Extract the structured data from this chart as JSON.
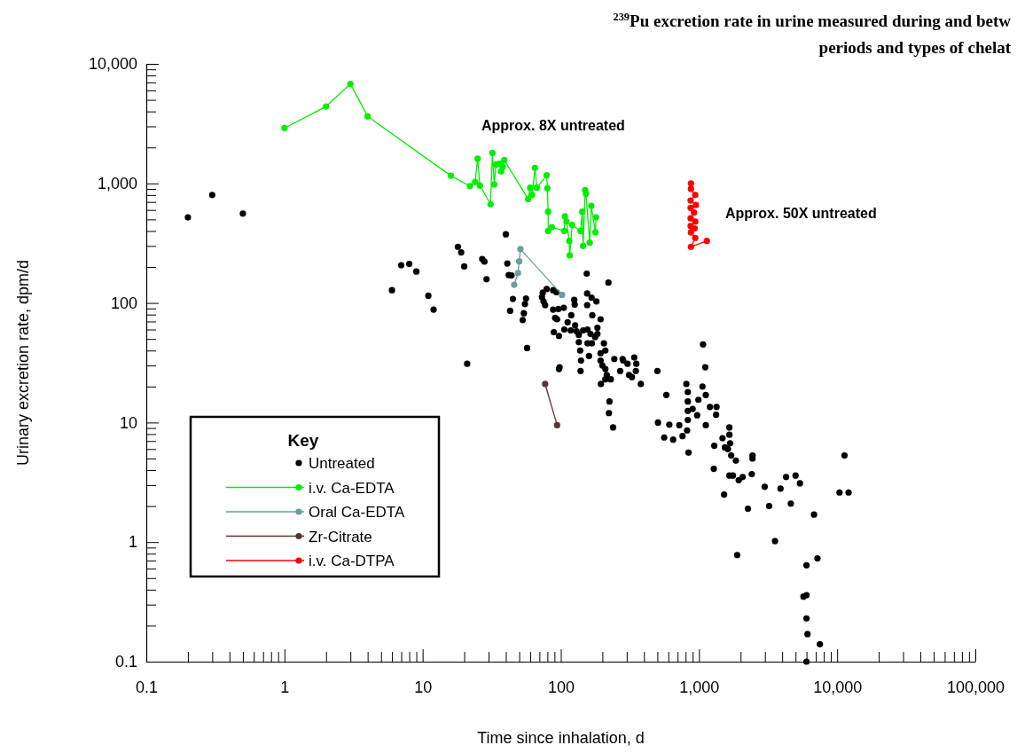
{
  "chart_data": {
    "type": "scatter",
    "title": "$^{239}$Pu excretion rate in urine measured during and betw",
    "subtitle": "periods and types of chelat",
    "xlabel": "Time since inhalation, d",
    "ylabel": "Urinary excretion rate, dpm/d",
    "legend_title": "Key",
    "legend": "bottom left",
    "log": "xy",
    "grid": false,
    "marker": "circle",
    "xlim": [
      0.1,
      100000
    ],
    "ylim": [
      0.1,
      10000
    ],
    "xticks": [
      0.1,
      {
        "value": 0.2,
        "label": null
      },
      {
        "value": 0.3,
        "label": null
      },
      {
        "value": 0.4,
        "label": null
      },
      {
        "value": 0.5,
        "label": null
      },
      {
        "value": 0.6,
        "label": null
      },
      {
        "value": 0.7,
        "label": null
      },
      {
        "value": 0.8,
        "label": null
      },
      {
        "value": 0.9,
        "label": null
      },
      1,
      {
        "value": 2,
        "label": null
      },
      {
        "value": 3,
        "label": null
      },
      {
        "value": 4,
        "label": null
      },
      {
        "value": 5,
        "label": null
      },
      {
        "value": 6,
        "label": null
      },
      {
        "value": 7,
        "label": null
      },
      {
        "value": 8,
        "label": null
      },
      {
        "value": 9,
        "label": null
      },
      10,
      {
        "value": 20,
        "label": null
      },
      {
        "value": 30,
        "label": null
      },
      {
        "value": 40,
        "label": null
      },
      {
        "value": 50,
        "label": null
      },
      {
        "value": 60,
        "label": null
      },
      {
        "value": 70,
        "label": null
      },
      {
        "value": 80,
        "label": null
      },
      {
        "value": 90,
        "label": null
      },
      100,
      {
        "value": 200,
        "label": null
      },
      {
        "value": 300,
        "label": null
      },
      {
        "value": 400,
        "label": null
      },
      {
        "value": 500,
        "label": null
      },
      {
        "value": 600,
        "label": null
      },
      {
        "value": 700,
        "label": null
      },
      {
        "value": 800,
        "label": null
      },
      {
        "value": 900,
        "label": null
      },
      {
        "value": 1000,
        "label": "1,000"
      },
      {
        "value": 2000,
        "label": null
      },
      {
        "value": 3000,
        "label": null
      },
      {
        "value": 4000,
        "label": null
      },
      {
        "value": 5000,
        "label": null
      },
      {
        "value": 6000,
        "label": null
      },
      {
        "value": 7000,
        "label": null
      },
      {
        "value": 8000,
        "label": null
      },
      {
        "value": 9000,
        "label": null
      },
      {
        "value": 10000,
        "label": "10,000"
      },
      {
        "value": 20000,
        "label": null
      },
      {
        "value": 30000,
        "label": null
      },
      {
        "value": 40000,
        "label": null
      },
      {
        "value": 50000,
        "label": null
      },
      {
        "value": 60000,
        "label": null
      },
      {
        "value": 70000,
        "label": null
      },
      {
        "value": 80000,
        "label": null
      },
      {
        "value": 90000,
        "label": null
      },
      {
        "value": 100000,
        "label": "100,000"
      }
    ],
    "yticks": [
      0.1,
      {
        "value": 0.2,
        "label": null
      },
      {
        "value": 0.3,
        "label": null
      },
      {
        "value": 0.4,
        "label": null
      },
      {
        "value": 0.5,
        "label": null
      },
      {
        "value": 0.6,
        "label": null
      },
      {
        "value": 0.7,
        "label": null
      },
      {
        "value": 0.8,
        "label": null
      },
      {
        "value": 0.9,
        "label": null
      },
      1,
      {
        "value": 2,
        "label": null
      },
      {
        "value": 3,
        "label": null
      },
      {
        "value": 4,
        "label": null
      },
      {
        "value": 5,
        "label": null
      },
      {
        "value": 6,
        "label": null
      },
      {
        "value": 7,
        "label": null
      },
      {
        "value": 8,
        "label": null
      },
      {
        "value": 9,
        "label": null
      },
      10,
      {
        "value": 20,
        "label": null
      },
      {
        "value": 30,
        "label": null
      },
      {
        "value": 40,
        "label": null
      },
      {
        "value": 50,
        "label": null
      },
      {
        "value": 60,
        "label": null
      },
      {
        "value": 70,
        "label": null
      },
      {
        "value": 80,
        "label": null
      },
      {
        "value": 90,
        "label": null
      },
      100,
      {
        "value": 200,
        "label": null
      },
      {
        "value": 300,
        "label": null
      },
      {
        "value": 400,
        "label": null
      },
      {
        "value": 500,
        "label": null
      },
      {
        "value": 600,
        "label": null
      },
      {
        "value": 700,
        "label": null
      },
      {
        "value": 800,
        "label": null
      },
      {
        "value": 900,
        "label": null
      },
      {
        "value": 1000,
        "label": "1,000"
      },
      {
        "value": 2000,
        "label": null
      },
      {
        "value": 3000,
        "label": null
      },
      {
        "value": 4000,
        "label": null
      },
      {
        "value": 5000,
        "label": null
      },
      {
        "value": 6000,
        "label": null
      },
      {
        "value": 7000,
        "label": null
      },
      {
        "value": 8000,
        "label": null
      },
      {
        "value": 9000,
        "label": null
      },
      {
        "value": 10000,
        "label": "10,000"
      }
    ],
    "annotations": [
      "Approx. 8X untreated",
      "Approx. 50X untreated"
    ],
    "series": [
      {
        "name": "Untreated",
        "color": "#000000",
        "x": [
          0.2,
          0.3,
          0.5,
          6,
          7,
          8,
          9,
          11,
          12,
          18,
          19,
          20,
          21,
          27,
          28,
          29,
          40,
          41,
          42,
          44,
          45,
          43,
          54,
          53,
          56,
          55,
          57,
          154,
          221,
          74,
          79,
          73,
          75,
          77,
          88,
          93,
          88,
          96,
          105,
          91,
          94,
          89,
          97,
          106,
          112,
          119,
          125,
          126,
          118,
          127,
          130,
          135,
          135,
          138,
          140,
          139,
          155,
          167,
          181,
          155,
          169,
          194,
          145,
          156,
          164,
          184,
          184,
          156,
          168,
          177,
          205,
          210,
          194,
          160,
          194,
          200,
          210,
          215,
          210,
          230,
          195,
          244,
          280,
          304,
          269,
          312,
          327,
          340,
          352,
          349,
          379,
          98,
          97,
          225,
          223,
          239,
          500,
          505,
          580,
          610,
          720,
          810,
          830,
          830,
          830,
          830,
          820,
          900,
          970,
          990,
          1070,
          1110,
          1060,
          760,
          560,
          650,
          1120,
          840,
          1120,
          1200,
          1340,
          1330,
          1290,
          1280,
          1520,
          1480,
          1540,
          1660,
          1660,
          1680,
          1620,
          1710,
          1850,
          1660,
          1760,
          1940,
          2070,
          2260,
          2410,
          2440,
          2440,
          1890,
          2990,
          3220,
          3550,
          3890,
          4270,
          4620,
          5000,
          5380,
          6800,
          7200,
          6000,
          5700,
          6000,
          6000,
          6100,
          7500,
          6000,
          11300,
          10400,
          12100,
          283
        ],
        "values": [
          520,
          800,
          560,
          128,
          207,
          212,
          183,
          115,
          88,
          295,
          265,
          202,
          31,
          233,
          222,
          158,
          375,
          214,
          171,
          170,
          108,
          86,
          82,
          72,
          109,
          98,
          42,
          176,
          148,
          122,
          131,
          112,
          103,
          96,
          128,
          123,
          88,
          89,
          91,
          75,
          73,
          57,
          53,
          60,
          69,
          79,
          106,
          97,
          59,
          65,
          58,
          54,
          47,
          40,
          33,
          27,
          120,
          111,
          103,
          96,
          79,
          73,
          59,
          60,
          55,
          62,
          55,
          46,
          46,
          52,
          46,
          40,
          38,
          36,
          33,
          30,
          28,
          25,
          23,
          23,
          21,
          34,
          34,
          31,
          27,
          25,
          24,
          35,
          31,
          27,
          21,
          29,
          28,
          15,
          12,
          9.1,
          27,
          10,
          17,
          9.6,
          9.5,
          21,
          18,
          15,
          12.5,
          10.5,
          8.6,
          13,
          11.5,
          15.5,
          45,
          29,
          20,
          7.7,
          7.5,
          7.2,
          17,
          5.6,
          9.5,
          13.5,
          13.5,
          11.6,
          6.4,
          4.1,
          2.5,
          7.4,
          6.2,
          9.1,
          7.9,
          6.7,
          6.0,
          5.3,
          4.8,
          3.6,
          3.6,
          3.3,
          3.5,
          1.9,
          3.7,
          5.3,
          5.0,
          0.78,
          2.9,
          2.0,
          1.02,
          2.8,
          3.5,
          2.1,
          3.6,
          3.1,
          1.7,
          0.73,
          0.64,
          0.35,
          0.36,
          0.23,
          0.17,
          0.14,
          0.1,
          5.3,
          2.6,
          2.6,
          33
        ]
      },
      {
        "name": "i.v. Ca-EDTA",
        "type": "line",
        "color": "#00ee00",
        "x": [
          1,
          2,
          3,
          4,
          16,
          22,
          24,
          25,
          26,
          31,
          32,
          33,
          34,
          36,
          37,
          38,
          39,
          58,
          60,
          62,
          65,
          67,
          79,
          80,
          81,
          81,
          86,
          106,
          107,
          110,
          115,
          116,
          121,
          139,
          143,
          145,
          150,
          152,
          162,
          166,
          178,
          180
        ],
        "values": [
          2900,
          4400,
          6800,
          3640,
          1160,
          950,
          1030,
          1610,
          960,
          670,
          1800,
          980,
          1440,
          1460,
          1260,
          1380,
          1570,
          740,
          920,
          800,
          1350,
          920,
          1170,
          910,
          580,
          400,
          430,
          400,
          530,
          480,
          330,
          250,
          450,
          400,
          580,
          300,
          880,
          820,
          320,
          650,
          390,
          520
        ]
      },
      {
        "name": "Oral Ca-EDTA",
        "type": "line",
        "color": "#6a9da0",
        "x": [
          46,
          49,
          50,
          51,
          102
        ],
        "values": [
          142,
          178,
          223,
          282,
          117
        ]
      },
      {
        "name": "Zr-Citrate",
        "type": "line",
        "color": "#5a3434",
        "x": [
          77,
          94
        ],
        "values": [
          21,
          9.5
        ]
      },
      {
        "name": "i.v. Ca-DTPA",
        "type": "line",
        "color": "#ff0000",
        "x": [
          875,
          875,
          940,
          870,
          950,
          870,
          920,
          870,
          940,
          870,
          930,
          875,
          940,
          875,
          1140
        ],
        "values": [
          1000,
          900,
          800,
          720,
          660,
          625,
          570,
          510,
          480,
          440,
          420,
          390,
          350,
          295,
          330
        ]
      }
    ]
  }
}
